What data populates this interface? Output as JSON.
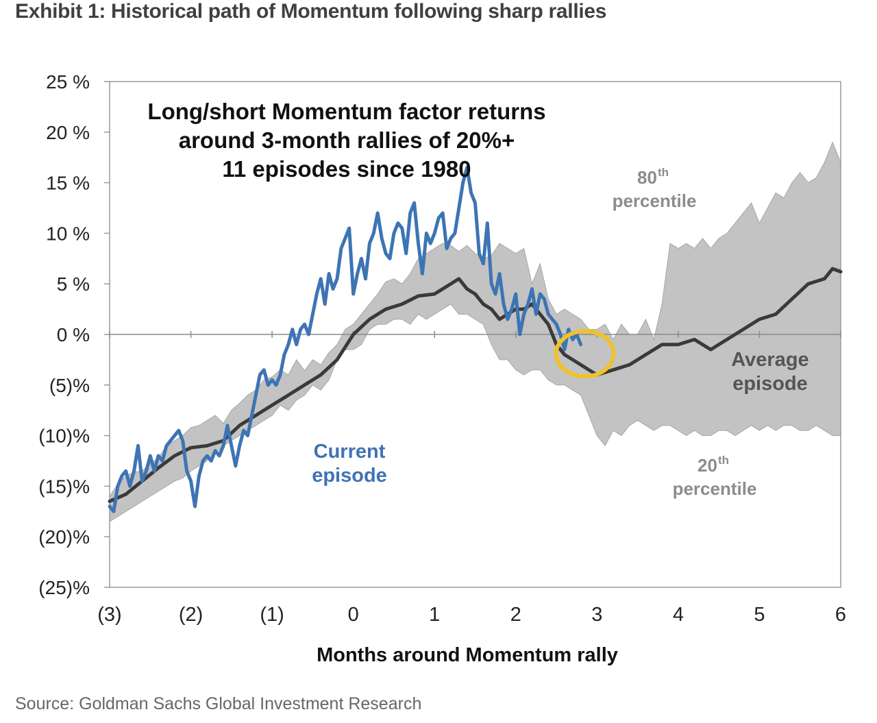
{
  "exhibit_title": "Exhibit 1: Historical path of Momentum following sharp rallies",
  "source": "Source: Goldman Sachs Global Investment Research",
  "colors": {
    "band": "#c3c3c3",
    "band_edge": "#a6a6a6",
    "average": "#3a3a3a",
    "current": "#3d74b4",
    "highlight_circle": "#f0c22a",
    "axis": "#999999"
  },
  "chart_data": {
    "type": "line",
    "title": "Long/short Momentum factor returns around 3-month rallies of 20%+ 11 episodes since 1980",
    "title_lines": [
      "Long/short Momentum factor returns",
      "around 3-month rallies of 20%+",
      "11 episodes since 1980"
    ],
    "xlabel": "Months around Momentum rally",
    "ylabel": "",
    "xlim": [
      -3,
      6
    ],
    "ylim": [
      -25,
      25
    ],
    "x_ticks": [
      -3,
      -2,
      -1,
      0,
      1,
      2,
      3,
      4,
      5,
      6
    ],
    "x_tick_labels": [
      "(3)",
      "(2)",
      "(1)",
      "0",
      "1",
      "2",
      "3",
      "4",
      "5",
      "6"
    ],
    "y_ticks": [
      25,
      20,
      15,
      10,
      5,
      0,
      -5,
      -10,
      -15,
      -20,
      -25
    ],
    "y_tick_labels": [
      "25 %",
      "20 %",
      "15 %",
      "10 %",
      "5 %",
      "0 %",
      "(5)%",
      "(10)%",
      "(15)%",
      "(20)%",
      "(25)%"
    ],
    "legend": "none",
    "series": [
      {
        "name": "80th percentile",
        "label_main": "80",
        "label_sup": "th",
        "label_word": "percentile",
        "x": [
          -3.0,
          -2.9,
          -2.8,
          -2.7,
          -2.6,
          -2.5,
          -2.4,
          -2.3,
          -2.2,
          -2.1,
          -2.0,
          -1.9,
          -1.8,
          -1.7,
          -1.6,
          -1.5,
          -1.4,
          -1.3,
          -1.2,
          -1.1,
          -1.0,
          -0.9,
          -0.8,
          -0.7,
          -0.6,
          -0.5,
          -0.4,
          -0.3,
          -0.2,
          -0.1,
          0.0,
          0.1,
          0.2,
          0.3,
          0.4,
          0.5,
          0.6,
          0.7,
          0.8,
          0.9,
          1.0,
          1.1,
          1.2,
          1.3,
          1.4,
          1.5,
          1.6,
          1.7,
          1.8,
          1.9,
          2.0,
          2.1,
          2.2,
          2.3,
          2.4,
          2.5,
          2.6,
          2.7,
          2.8,
          2.9,
          3.0,
          3.1,
          3.2,
          3.3,
          3.4,
          3.5,
          3.6,
          3.7,
          3.8,
          3.9,
          4.0,
          4.1,
          4.2,
          4.3,
          4.4,
          4.5,
          4.6,
          4.7,
          4.8,
          4.9,
          5.0,
          5.1,
          5.2,
          5.3,
          5.4,
          5.5,
          5.6,
          5.7,
          5.8,
          5.9,
          6.0
        ],
        "values": [
          -16.0,
          -14.8,
          -14.0,
          -13.6,
          -13.5,
          -12.8,
          -12.2,
          -11.0,
          -10.5,
          -10.0,
          -9.2,
          -9.0,
          -8.5,
          -8.0,
          -8.8,
          -7.5,
          -6.8,
          -6.0,
          -5.5,
          -4.5,
          -4.2,
          -3.5,
          -4.0,
          -2.5,
          -3.6,
          -2.5,
          -3.0,
          -1.8,
          -1.0,
          0.5,
          1.0,
          2.0,
          3.0,
          4.0,
          5.2,
          5.5,
          5.0,
          6.0,
          7.5,
          8.0,
          8.5,
          9.0,
          8.8,
          8.2,
          8.8,
          8.0,
          7.5,
          7.8,
          9.0,
          8.5,
          8.0,
          8.5,
          5.0,
          7.0,
          3.5,
          2.0,
          2.5,
          2.0,
          1.5,
          0.5,
          0.5,
          1.0,
          -0.5,
          1.0,
          0.0,
          0.0,
          1.5,
          -0.5,
          3.0,
          9.0,
          8.5,
          9.0,
          8.5,
          9.5,
          8.5,
          9.5,
          10.0,
          11.0,
          12.0,
          13.0,
          11.0,
          12.5,
          14.0,
          13.5,
          15.0,
          16.0,
          15.0,
          15.5,
          17.0,
          19.0,
          17.0
        ]
      },
      {
        "name": "20th percentile",
        "label_main": "20",
        "label_sup": "th",
        "label_word": "percentile",
        "x": [
          -3.0,
          -2.9,
          -2.8,
          -2.7,
          -2.6,
          -2.5,
          -2.4,
          -2.3,
          -2.2,
          -2.1,
          -2.0,
          -1.9,
          -1.8,
          -1.7,
          -1.6,
          -1.5,
          -1.4,
          -1.3,
          -1.2,
          -1.1,
          -1.0,
          -0.9,
          -0.8,
          -0.7,
          -0.6,
          -0.5,
          -0.4,
          -0.3,
          -0.2,
          -0.1,
          0.0,
          0.1,
          0.2,
          0.3,
          0.4,
          0.5,
          0.6,
          0.7,
          0.8,
          0.9,
          1.0,
          1.1,
          1.2,
          1.3,
          1.4,
          1.5,
          1.6,
          1.7,
          1.8,
          1.9,
          2.0,
          2.1,
          2.2,
          2.3,
          2.4,
          2.5,
          2.6,
          2.7,
          2.8,
          2.9,
          3.0,
          3.1,
          3.2,
          3.3,
          3.4,
          3.5,
          3.6,
          3.7,
          3.8,
          3.9,
          4.0,
          4.1,
          4.2,
          4.3,
          4.4,
          4.5,
          4.6,
          4.7,
          4.8,
          4.9,
          5.0,
          5.1,
          5.2,
          5.3,
          5.4,
          5.5,
          5.6,
          5.7,
          5.8,
          5.9,
          6.0
        ],
        "values": [
          -18.5,
          -18.0,
          -17.5,
          -17.0,
          -16.5,
          -16.0,
          -15.5,
          -15.0,
          -14.5,
          -14.2,
          -13.5,
          -13.0,
          -12.5,
          -11.8,
          -11.0,
          -10.5,
          -10.0,
          -9.5,
          -9.0,
          -8.5,
          -8.0,
          -7.0,
          -7.5,
          -6.5,
          -6.0,
          -5.0,
          -5.5,
          -4.5,
          -2.5,
          -1.5,
          -1.5,
          -1.0,
          0.5,
          1.0,
          1.0,
          1.5,
          1.5,
          1.0,
          2.0,
          1.5,
          2.0,
          2.5,
          3.0,
          2.0,
          2.0,
          1.5,
          1.0,
          -1.0,
          -2.5,
          -2.5,
          -3.5,
          -4.0,
          -3.5,
          -3.5,
          -4.5,
          -5.0,
          -5.0,
          -5.5,
          -6.0,
          -8.0,
          -10.0,
          -11.0,
          -9.5,
          -10.0,
          -9.0,
          -8.5,
          -9.0,
          -9.5,
          -9.0,
          -9.0,
          -9.5,
          -10.0,
          -9.5,
          -10.0,
          -10.0,
          -9.5,
          -9.5,
          -10.0,
          -9.5,
          -9.0,
          -9.5,
          -9.0,
          -9.5,
          -9.0,
          -9.0,
          -9.5,
          -9.5,
          -9.0,
          -9.5,
          -10.0,
          -10.0
        ]
      },
      {
        "name": "Average episode",
        "label_lines": [
          "Average",
          "episode"
        ],
        "x": [
          -3.0,
          -2.8,
          -2.6,
          -2.4,
          -2.2,
          -2.0,
          -1.8,
          -1.6,
          -1.4,
          -1.2,
          -1.0,
          -0.8,
          -0.6,
          -0.4,
          -0.2,
          0.0,
          0.2,
          0.4,
          0.6,
          0.8,
          1.0,
          1.2,
          1.3,
          1.4,
          1.5,
          1.6,
          1.7,
          1.8,
          1.9,
          2.0,
          2.1,
          2.2,
          2.3,
          2.4,
          2.5,
          2.6,
          2.7,
          2.8,
          2.9,
          3.0,
          3.2,
          3.4,
          3.6,
          3.8,
          4.0,
          4.2,
          4.4,
          4.6,
          4.8,
          5.0,
          5.2,
          5.4,
          5.6,
          5.8,
          5.9,
          6.0
        ],
        "values": [
          -16.5,
          -15.8,
          -14.5,
          -13.2,
          -12.0,
          -11.2,
          -11.0,
          -10.5,
          -9.0,
          -8.0,
          -7.0,
          -6.0,
          -5.0,
          -4.0,
          -2.5,
          0.0,
          1.5,
          2.5,
          3.0,
          3.8,
          4.0,
          5.0,
          5.5,
          4.5,
          4.0,
          3.0,
          2.5,
          1.5,
          2.0,
          2.5,
          2.5,
          3.0,
          2.0,
          1.0,
          -1.0,
          -2.0,
          -2.5,
          -3.0,
          -3.5,
          -4.0,
          -3.5,
          -3.0,
          -2.0,
          -1.0,
          -1.0,
          -0.5,
          -1.5,
          -0.5,
          0.5,
          1.5,
          2.0,
          3.5,
          5.0,
          5.5,
          6.5,
          6.2
        ]
      },
      {
        "name": "Current episode",
        "label_lines": [
          "Current",
          "episode"
        ],
        "x": [
          -3.0,
          -2.95,
          -2.9,
          -2.85,
          -2.8,
          -2.75,
          -2.7,
          -2.65,
          -2.6,
          -2.55,
          -2.5,
          -2.45,
          -2.4,
          -2.35,
          -2.3,
          -2.25,
          -2.2,
          -2.15,
          -2.1,
          -2.05,
          -2.0,
          -1.95,
          -1.9,
          -1.85,
          -1.8,
          -1.75,
          -1.7,
          -1.65,
          -1.6,
          -1.55,
          -1.5,
          -1.45,
          -1.4,
          -1.35,
          -1.3,
          -1.25,
          -1.2,
          -1.15,
          -1.1,
          -1.05,
          -1.0,
          -0.95,
          -0.9,
          -0.85,
          -0.8,
          -0.75,
          -0.7,
          -0.65,
          -0.6,
          -0.55,
          -0.5,
          -0.45,
          -0.4,
          -0.35,
          -0.3,
          -0.25,
          -0.2,
          -0.15,
          -0.1,
          -0.05,
          0.0,
          0.05,
          0.1,
          0.15,
          0.2,
          0.25,
          0.3,
          0.35,
          0.4,
          0.45,
          0.5,
          0.55,
          0.6,
          0.65,
          0.7,
          0.75,
          0.8,
          0.85,
          0.9,
          0.95,
          1.0,
          1.05,
          1.1,
          1.15,
          1.2,
          1.25,
          1.3,
          1.35,
          1.4,
          1.45,
          1.5,
          1.55,
          1.6,
          1.65,
          1.7,
          1.75,
          1.8,
          1.85,
          1.9,
          1.95,
          2.0,
          2.05,
          2.1,
          2.15,
          2.2,
          2.25,
          2.3,
          2.35,
          2.4,
          2.45,
          2.5,
          2.55,
          2.6,
          2.65,
          2.7,
          2.75,
          2.8
        ],
        "values": [
          -17.0,
          -17.5,
          -15.0,
          -14.0,
          -13.5,
          -15.0,
          -13.5,
          -11.0,
          -14.5,
          -13.5,
          -12.0,
          -13.5,
          -12.0,
          -12.5,
          -11.0,
          -10.5,
          -10.0,
          -9.5,
          -10.5,
          -13.5,
          -14.5,
          -17.0,
          -14.0,
          -12.5,
          -12.0,
          -12.5,
          -11.5,
          -12.0,
          -11.0,
          -9.0,
          -11.0,
          -13.0,
          -11.0,
          -9.5,
          -10.0,
          -8.0,
          -6.0,
          -4.0,
          -3.5,
          -5.0,
          -4.5,
          -5.0,
          -4.0,
          -2.0,
          -1.0,
          0.5,
          -1.0,
          0.5,
          1.0,
          0.0,
          2.0,
          4.0,
          5.5,
          3.0,
          6.0,
          4.5,
          5.5,
          8.5,
          9.5,
          10.5,
          4.0,
          6.0,
          7.5,
          5.5,
          9.0,
          10.0,
          12.0,
          9.5,
          8.0,
          7.5,
          10.0,
          11.0,
          10.5,
          8.0,
          12.0,
          13.0,
          9.0,
          6.0,
          10.0,
          9.0,
          10.0,
          11.5,
          12.0,
          8.5,
          9.5,
          10.0,
          12.5,
          15.0,
          16.5,
          14.0,
          13.0,
          8.0,
          7.0,
          11.0,
          5.0,
          4.0,
          6.0,
          3.0,
          1.5,
          2.5,
          4.0,
          0.0,
          2.0,
          3.0,
          4.5,
          2.0,
          4.0,
          3.5,
          2.0,
          1.5,
          1.0,
          0.0,
          -1.5,
          0.5,
          -0.5,
          0.0,
          -1.0
        ]
      }
    ],
    "highlight": {
      "x": 2.8,
      "y": -1.5,
      "shape": "circle"
    }
  }
}
